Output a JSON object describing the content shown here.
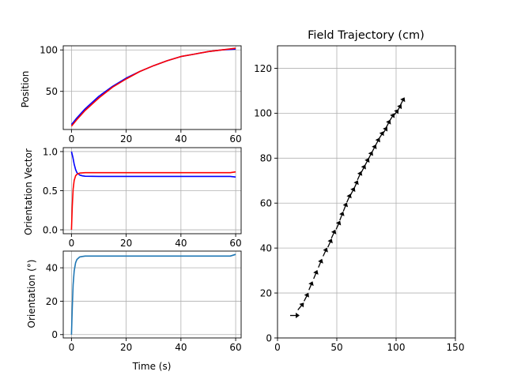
{
  "chart_data": [
    {
      "type": "line",
      "title": "",
      "xlabel": "",
      "ylabel": "Position",
      "xlim": [
        -3,
        62
      ],
      "ylim": [
        4,
        105
      ],
      "xticks": [
        0,
        20,
        40,
        60
      ],
      "yticks": [
        50,
        100
      ],
      "grid": true,
      "series": [
        {
          "color": "#0000ff",
          "x": [
            0,
            2,
            5,
            10,
            15,
            20,
            25,
            30,
            35,
            40,
            45,
            50,
            55,
            60
          ],
          "y": [
            10,
            18,
            29,
            44,
            56,
            66,
            74,
            81,
            87,
            92,
            95,
            98,
            100,
            101
          ]
        },
        {
          "color": "#ff0000",
          "x": [
            0,
            2,
            5,
            10,
            15,
            20,
            25,
            30,
            35,
            40,
            45,
            50,
            55,
            60
          ],
          "y": [
            8,
            16,
            27,
            42,
            55,
            65,
            74,
            81,
            87,
            92,
            95,
            98,
            100,
            102
          ]
        }
      ]
    },
    {
      "type": "line",
      "title": "",
      "xlabel": "",
      "ylabel": "Orientation Vector",
      "xlim": [
        -3,
        62
      ],
      "ylim": [
        -0.05,
        1.05
      ],
      "xticks": [
        0,
        20,
        40,
        60
      ],
      "yticks": [
        0.0,
        0.5,
        1.0
      ],
      "ytick_labels": [
        "0.0",
        "0.5",
        "1.0"
      ],
      "grid": true,
      "series": [
        {
          "color": "#0000ff",
          "x": [
            0,
            0.5,
            1,
            1.5,
            2,
            3,
            4,
            5,
            10,
            20,
            30,
            40,
            50,
            58,
            60
          ],
          "y": [
            1.0,
            0.93,
            0.84,
            0.77,
            0.73,
            0.7,
            0.69,
            0.685,
            0.683,
            0.683,
            0.683,
            0.683,
            0.683,
            0.683,
            0.675
          ]
        },
        {
          "color": "#ff0000",
          "x": [
            0,
            0.3,
            0.6,
            1,
            1.5,
            2,
            3,
            4,
            5,
            10,
            20,
            30,
            40,
            50,
            58,
            60
          ],
          "y": [
            0.0,
            0.3,
            0.52,
            0.63,
            0.69,
            0.71,
            0.725,
            0.728,
            0.73,
            0.73,
            0.73,
            0.73,
            0.73,
            0.73,
            0.73,
            0.74
          ]
        }
      ]
    },
    {
      "type": "line",
      "title": "",
      "xlabel": "Time (s)",
      "ylabel": "Orientation (°)",
      "xlim": [
        -3,
        62
      ],
      "ylim": [
        -2,
        50
      ],
      "xticks": [
        0,
        20,
        40,
        60
      ],
      "yticks": [
        0,
        20,
        40
      ],
      "grid": true,
      "series": [
        {
          "color": "#1f77b4",
          "x": [
            0,
            0.3,
            0.6,
            1,
            1.5,
            2,
            3,
            4,
            5,
            10,
            20,
            30,
            40,
            50,
            58,
            60
          ],
          "y": [
            0,
            16,
            30,
            38,
            43,
            45,
            46.5,
            46.8,
            47,
            47,
            47,
            47,
            47,
            47,
            47,
            48
          ]
        }
      ]
    },
    {
      "type": "quiver",
      "title": "Field Trajectory (cm)",
      "xlabel": "",
      "ylabel": "",
      "xlim": [
        0,
        150
      ],
      "ylim": [
        0,
        130
      ],
      "xticks": [
        0,
        50,
        100,
        150
      ],
      "yticks": [
        0,
        20,
        40,
        60,
        80,
        100,
        120
      ],
      "grid": true,
      "color": "#000000",
      "start": [
        12,
        10
      ],
      "end": [
        104,
        104
      ],
      "points": [
        [
          12,
          10
        ],
        [
          18,
          13
        ],
        [
          23,
          17
        ],
        [
          27,
          22
        ],
        [
          31,
          27
        ],
        [
          35,
          32
        ],
        [
          39,
          37
        ],
        [
          43,
          41
        ],
        [
          46,
          45
        ],
        [
          50,
          49
        ],
        [
          53,
          53
        ],
        [
          56,
          57
        ],
        [
          59,
          61
        ],
        [
          62,
          64
        ],
        [
          65,
          67
        ],
        [
          68,
          71
        ],
        [
          71,
          74
        ],
        [
          74,
          77
        ],
        [
          77,
          80
        ],
        [
          80,
          83
        ],
        [
          83,
          86
        ],
        [
          86,
          89
        ],
        [
          89,
          91
        ],
        [
          92,
          94
        ],
        [
          95,
          97
        ],
        [
          98,
          99
        ],
        [
          101,
          101
        ],
        [
          104,
          104
        ]
      ]
    }
  ]
}
